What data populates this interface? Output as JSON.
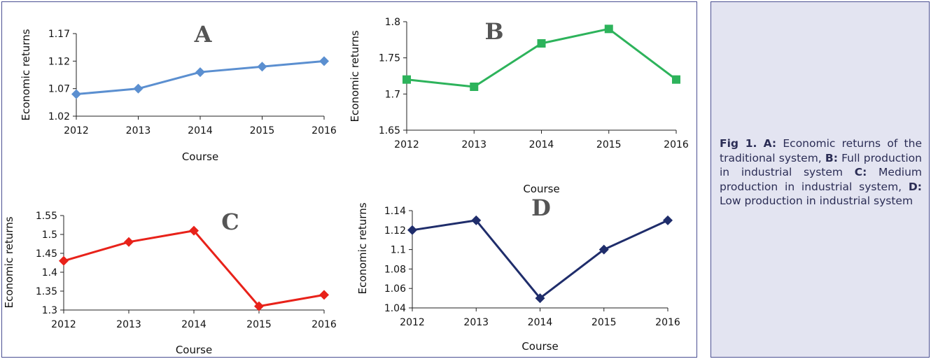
{
  "caption": {
    "fig_label": "Fig 1.",
    "a_key": "A:",
    "a_text": "Economic returns of the traditional system,",
    "b_key": "B:",
    "b_text": "Full production in industrial system",
    "c_key": "C:",
    "c_text": "Medium production in industrial system,",
    "d_key": "D:",
    "d_text": "Low production in industrial system"
  },
  "chart_data": [
    {
      "id": "A",
      "type": "line",
      "panel_label": "A",
      "xlabel": "Course",
      "ylabel": "Economic returns",
      "categories": [
        "2012",
        "2013",
        "2014",
        "2015",
        "2016"
      ],
      "values": [
        1.06,
        1.07,
        1.1,
        1.11,
        1.12
      ],
      "ylim": [
        1.02,
        1.17
      ],
      "yticks": [
        "1.02",
        "1.07",
        "1.12",
        "1.17"
      ],
      "color": "#5b8fd0",
      "marker": "diamond",
      "title_color": "#555555",
      "xlabel_color": "#111111",
      "ylabel_color": "#111111",
      "grid": false
    },
    {
      "id": "B",
      "type": "line",
      "panel_label": "B",
      "xlabel": "Course",
      "ylabel": "Economic returns",
      "categories": [
        "2012",
        "2013",
        "2014",
        "2015",
        "2016"
      ],
      "values": [
        1.72,
        1.71,
        1.77,
        1.79,
        1.72
      ],
      "ylim": [
        1.65,
        1.8
      ],
      "yticks": [
        "1.65",
        "1.7",
        "1.75",
        "1.8"
      ],
      "color": "#2db35b",
      "marker": "square",
      "title_color": "#555555",
      "xlabel_color": "#8a8a8a",
      "ylabel_color": "#8a8a8a",
      "grid": false
    },
    {
      "id": "C",
      "type": "line",
      "panel_label": "C",
      "xlabel": "Course",
      "ylabel": "Economic returns",
      "categories": [
        "2012",
        "2013",
        "2014",
        "2015",
        "2016"
      ],
      "values": [
        1.43,
        1.48,
        1.51,
        1.31,
        1.34
      ],
      "ylim": [
        1.3,
        1.55
      ],
      "yticks": [
        "1.3",
        "1.35",
        "1.4",
        "1.45",
        "1.5",
        "1.55"
      ],
      "color": "#e8221a",
      "marker": "diamond",
      "title_color": "#555555",
      "xlabel_color": "#111111",
      "ylabel_color": "#111111",
      "grid": false
    },
    {
      "id": "D",
      "type": "line",
      "panel_label": "D",
      "xlabel": "Course",
      "ylabel": "Economic returns",
      "categories": [
        "2012",
        "2013",
        "2014",
        "2015",
        "2016"
      ],
      "values": [
        1.12,
        1.13,
        1.05,
        1.1,
        1.13
      ],
      "ylim": [
        1.04,
        1.14
      ],
      "yticks": [
        "1.04",
        "1.06",
        "1.08",
        "1.1",
        "1.12",
        "1.14"
      ],
      "color": "#1f2d6b",
      "marker": "diamond",
      "title_color": "#555555",
      "xlabel_color": "#111111",
      "ylabel_color": "#111111",
      "grid": false
    }
  ]
}
